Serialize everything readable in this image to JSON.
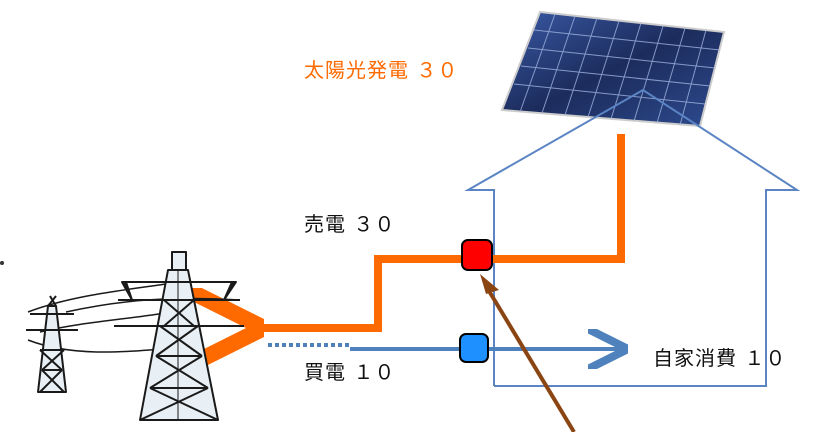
{
  "labels": {
    "solar": "太陽光発電 ３０",
    "sell": "売電 ３０",
    "buy": "買電 １０",
    "self_consumption": "自家消費 １０"
  },
  "colors": {
    "solar_flow": "#ff6a00",
    "house_outline": "#5a84c4",
    "buy_flow": "#4f81bd",
    "sell_meter": "#ff0000",
    "buy_meter": "#1e90ff",
    "pointer_arrow": "#8b4513",
    "panel_blue": "#22366e"
  },
  "icons": {
    "panel": "solar-panel-icon",
    "towers": "transmission-tower-icon"
  }
}
